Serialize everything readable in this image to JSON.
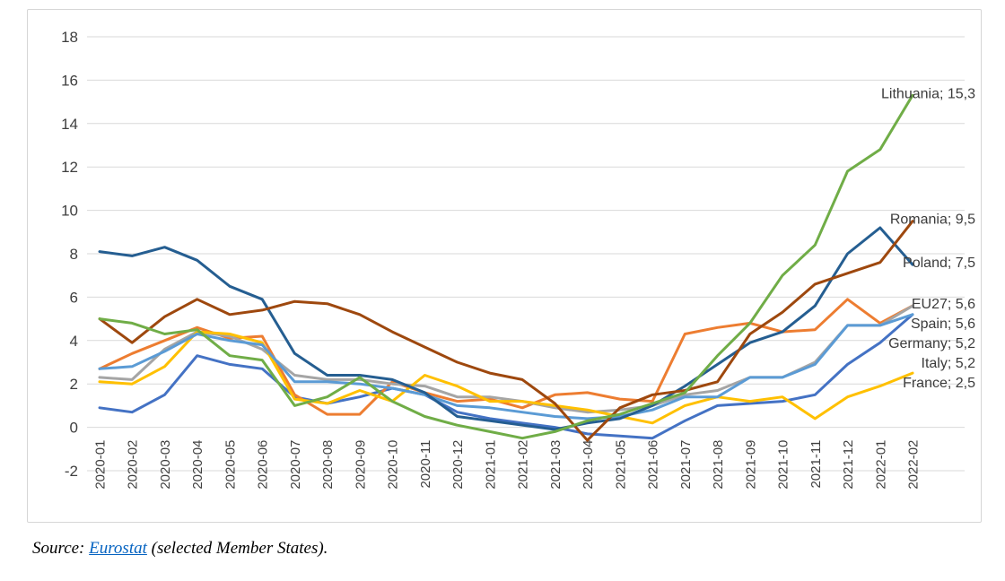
{
  "chart": {
    "border_color": "#d6d6d6",
    "grid_color": "#d9d9d9",
    "axis_text_color": "#404040",
    "end_label_text_color": "#3b3b3b"
  },
  "chart_data": {
    "type": "line",
    "title": "",
    "xlabel": "",
    "ylabel": "",
    "ylim": [
      -2,
      18
    ],
    "ytick_step": 2,
    "grid": true,
    "x_tick_rotation": -90,
    "legend_position": "series-end-labels",
    "x": [
      "2020-01",
      "2020-02",
      "2020-03",
      "2020-04",
      "2020-05",
      "2020-06",
      "2020-07",
      "2020-08",
      "2020-09",
      "2020-10",
      "2020-11",
      "2020-12",
      "2021-01",
      "2021-02",
      "2021-03",
      "2021-04",
      "2021-05",
      "2021-06",
      "2021-07",
      "2021-08",
      "2021-09",
      "2021-10",
      "2021-11",
      "2021-12",
      "2022-01",
      "2022-02"
    ],
    "series": [
      {
        "name": "Italy",
        "color": "#4472C4",
        "end_label": "Italy; 5,2",
        "values": [
          0.9,
          0.7,
          1.5,
          3.3,
          2.9,
          2.7,
          1.4,
          1.1,
          1.4,
          1.8,
          1.5,
          0.7,
          0.4,
          0.2,
          0.0,
          -0.3,
          -0.4,
          -0.5,
          0.3,
          1.0,
          1.1,
          1.2,
          1.5,
          2.9,
          3.9,
          5.2
        ]
      },
      {
        "name": "Spain",
        "color": "#ED7D31",
        "end_label": "Spain; 5,6",
        "values": [
          2.7,
          3.4,
          4.0,
          4.6,
          4.1,
          4.2,
          1.5,
          0.6,
          0.6,
          2.1,
          1.6,
          1.2,
          1.3,
          0.9,
          1.5,
          1.6,
          1.3,
          1.2,
          4.3,
          4.6,
          4.8,
          4.4,
          4.5,
          5.9,
          4.8,
          5.6
        ]
      },
      {
        "name": "EU27",
        "color": "#A5A5A5",
        "end_label": "EU27; 5,6",
        "values": [
          2.3,
          2.2,
          3.6,
          4.4,
          4.2,
          3.6,
          2.4,
          2.2,
          2.2,
          2.0,
          1.9,
          1.4,
          1.4,
          1.2,
          0.9,
          0.7,
          0.8,
          1.0,
          1.5,
          1.7,
          2.3,
          2.3,
          3.0,
          4.7,
          4.7,
          5.6
        ]
      },
      {
        "name": "France",
        "color": "#FFC000",
        "end_label": "France; 2,5",
        "values": [
          2.1,
          2.0,
          2.8,
          4.4,
          4.3,
          3.9,
          1.3,
          1.1,
          1.7,
          1.2,
          2.4,
          1.9,
          1.2,
          1.2,
          1.0,
          0.8,
          0.5,
          0.2,
          1.0,
          1.4,
          1.2,
          1.4,
          0.4,
          1.4,
          1.9,
          2.5
        ]
      },
      {
        "name": "Germany",
        "color": "#5B9BD5",
        "end_label": "Germany; 5,2",
        "values": [
          2.7,
          2.8,
          3.5,
          4.3,
          4.0,
          3.8,
          2.1,
          2.1,
          2.0,
          1.8,
          1.5,
          1.0,
          0.9,
          0.7,
          0.5,
          0.4,
          0.5,
          0.8,
          1.4,
          1.4,
          2.3,
          2.3,
          2.9,
          4.7,
          4.7,
          5.2
        ]
      },
      {
        "name": "Poland",
        "color": "#255E91",
        "end_label": "Poland; 7,5",
        "values": [
          8.1,
          7.9,
          8.3,
          7.7,
          6.5,
          5.9,
          3.4,
          2.4,
          2.4,
          2.2,
          1.6,
          0.5,
          0.3,
          0.1,
          -0.1,
          0.2,
          0.4,
          1.0,
          1.9,
          2.9,
          3.9,
          4.4,
          5.6,
          8.0,
          9.2,
          7.5
        ]
      },
      {
        "name": "Romania",
        "color": "#9E480E",
        "end_label": "Romania; 9,5",
        "values": [
          5.0,
          3.9,
          5.1,
          5.9,
          5.2,
          5.4,
          5.8,
          5.7,
          5.2,
          4.4,
          3.7,
          3.0,
          2.5,
          2.2,
          1.1,
          -0.6,
          0.9,
          1.5,
          1.7,
          2.1,
          4.3,
          5.3,
          6.6,
          7.1,
          7.6,
          9.5
        ]
      },
      {
        "name": "Lithuania",
        "color": "#70AD47",
        "end_label": "Lithuania; 15,3",
        "values": [
          5.0,
          4.8,
          4.3,
          4.5,
          3.3,
          3.1,
          1.0,
          1.4,
          2.3,
          1.2,
          0.5,
          0.1,
          -0.2,
          -0.5,
          -0.2,
          0.3,
          0.6,
          1.1,
          1.6,
          3.3,
          4.8,
          7.0,
          8.4,
          11.8,
          12.8,
          15.3
        ]
      }
    ],
    "end_label_order": [
      "Lithuania",
      "Romania",
      "Poland",
      "EU27",
      "Spain",
      "Germany",
      "Italy",
      "France"
    ]
  },
  "source": {
    "prefix": "Source: ",
    "link_text": "Eurostat",
    "suffix": " (selected Member States).",
    "link_color": "#0563C1"
  }
}
